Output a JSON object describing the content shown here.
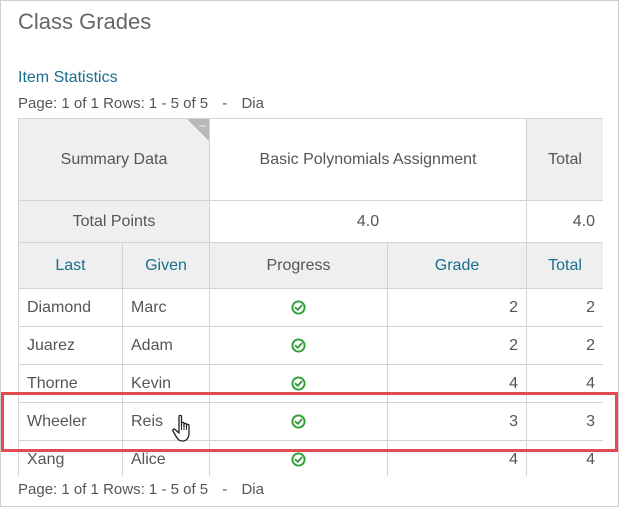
{
  "panel": {
    "title": "Class Grades"
  },
  "links": {
    "item_statistics": "Item Statistics"
  },
  "pager": {
    "page": "Page: 1 of 1",
    "rows": "Rows: 1 - 5 of 5",
    "separator": "-",
    "dia": "Dia"
  },
  "summary": {
    "label": "Summary Data",
    "assignment": "Basic Polynomials Assignment",
    "total_label": "Total",
    "total_points_label": "Total Points",
    "total_points_value": "4.0",
    "total_points_total": "4.0"
  },
  "columns": {
    "last": "Last",
    "given": "Given",
    "progress": "Progress",
    "grade": "Grade",
    "total": "Total"
  },
  "students": [
    {
      "last": "Diamond",
      "given": "Marc",
      "grade": "2",
      "total": "2"
    },
    {
      "last": "Juarez",
      "given": "Adam",
      "grade": "2",
      "total": "2"
    },
    {
      "last": "Thorne",
      "given": "Kevin",
      "grade": "4",
      "total": "4"
    },
    {
      "last": "Wheeler",
      "given": "Reis",
      "grade": "3",
      "total": "3"
    },
    {
      "last": "Xang",
      "given": "Alice",
      "grade": "4",
      "total": "4"
    }
  ],
  "colors": {
    "link": "#1a6e8e",
    "check": "#2e9e35",
    "highlight": "#e24b52"
  },
  "icons": {
    "progress": "check-circle-icon",
    "corner": "collapse-corner-icon",
    "cursor": "hand-pointer-icon"
  }
}
